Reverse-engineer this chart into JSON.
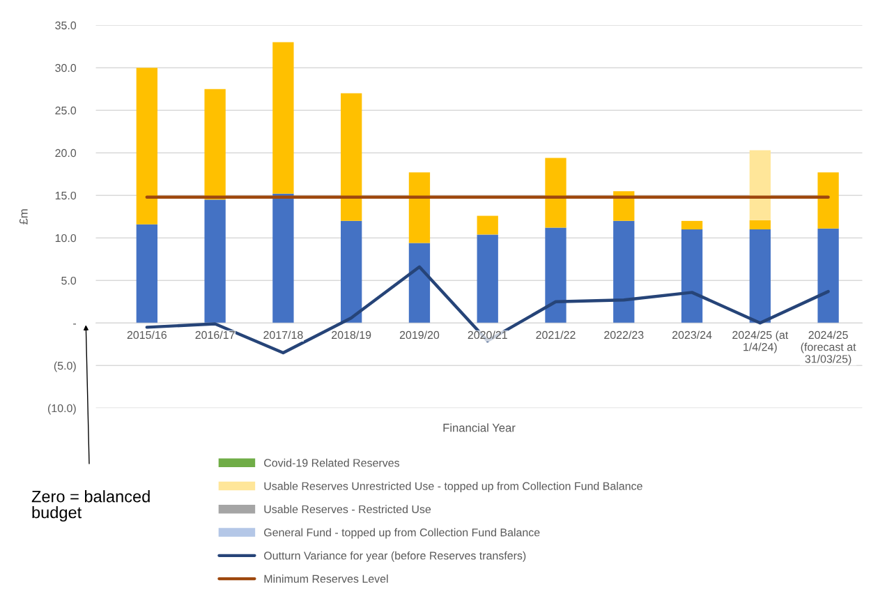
{
  "chart_data": {
    "type": "bar",
    "stacked": true,
    "xlabel": "Financial Year",
    "ylabel": "£m",
    "categories": [
      "2015/16",
      "2016/17",
      "2017/18",
      "2018/19",
      "2019/20",
      "2020/21",
      "2021/22",
      "2022/23",
      "2023/24",
      "2024/25 (at\n1/4/24)",
      "2024/25\n(forecast at\n31/03/25)"
    ],
    "series": [
      {
        "color": "#4472c4",
        "values": [
          11.6,
          14.5,
          15.2,
          12.0,
          9.4,
          10.4,
          11.2,
          12.0,
          11.0,
          11.0,
          11.1
        ]
      },
      {
        "name": "General Fund - topped up from Collection Fund Balance",
        "color": "#b4c7e7",
        "values": [
          null,
          null,
          null,
          null,
          null,
          null,
          null,
          null,
          null,
          null,
          null
        ]
      },
      {
        "name": "Usable Reserves - Restricted Use",
        "color": "#a5a5a5",
        "values": [
          null,
          null,
          null,
          null,
          null,
          null,
          null,
          null,
          null,
          null,
          null
        ]
      },
      {
        "color": "#ffc000",
        "values": [
          18.4,
          13.0,
          17.8,
          15.0,
          8.3,
          2.2,
          8.2,
          3.5,
          1.0,
          1.1,
          6.6
        ]
      },
      {
        "name": "Usable Reserves Unrestricted Use - topped up from Collection Fund Balance",
        "color": "#ffe699",
        "values": [
          null,
          null,
          null,
          null,
          null,
          null,
          null,
          null,
          null,
          8.2,
          null
        ]
      },
      {
        "name": "Covid-19 Related Reserves",
        "color": "#70ad47",
        "values": [
          null,
          null,
          null,
          null,
          null,
          null,
          null,
          null,
          null,
          null,
          null
        ]
      },
      {
        "type": "line",
        "name": "Outturn Variance for year (before Reserves transfers)",
        "color": "#264478",
        "values": [
          -0.5,
          -0.1,
          -3.5,
          0.6,
          6.6,
          -2.1,
          2.5,
          2.7,
          3.6,
          0.0,
          3.7
        ]
      },
      {
        "type": "line",
        "name": "Minimum Reserves Level",
        "color": "#9e480e",
        "values": [
          14.8,
          14.8,
          14.8,
          14.8,
          14.8,
          14.8,
          14.8,
          14.8,
          14.8,
          14.8,
          14.8
        ]
      }
    ],
    "ylim": [
      -10,
      35
    ],
    "yticks": [
      {
        "value": -10,
        "label": "(10.0)"
      },
      {
        "value": -5,
        "label": "(5.0)"
      },
      {
        "value": 0,
        "label": "-"
      },
      {
        "value": 5,
        "label": "5.0"
      },
      {
        "value": 10,
        "label": "10.0"
      },
      {
        "value": 15,
        "label": "15.0"
      },
      {
        "value": 20,
        "label": "20.0"
      },
      {
        "value": 25,
        "label": "25.0"
      },
      {
        "value": 30,
        "label": "30.0"
      },
      {
        "value": 35,
        "label": "35.0"
      }
    ],
    "grid": "y",
    "legend": "bottom",
    "marker": "none",
    "line_style": "solid",
    "annotations": [
      "Zero = balanced budget"
    ]
  }
}
